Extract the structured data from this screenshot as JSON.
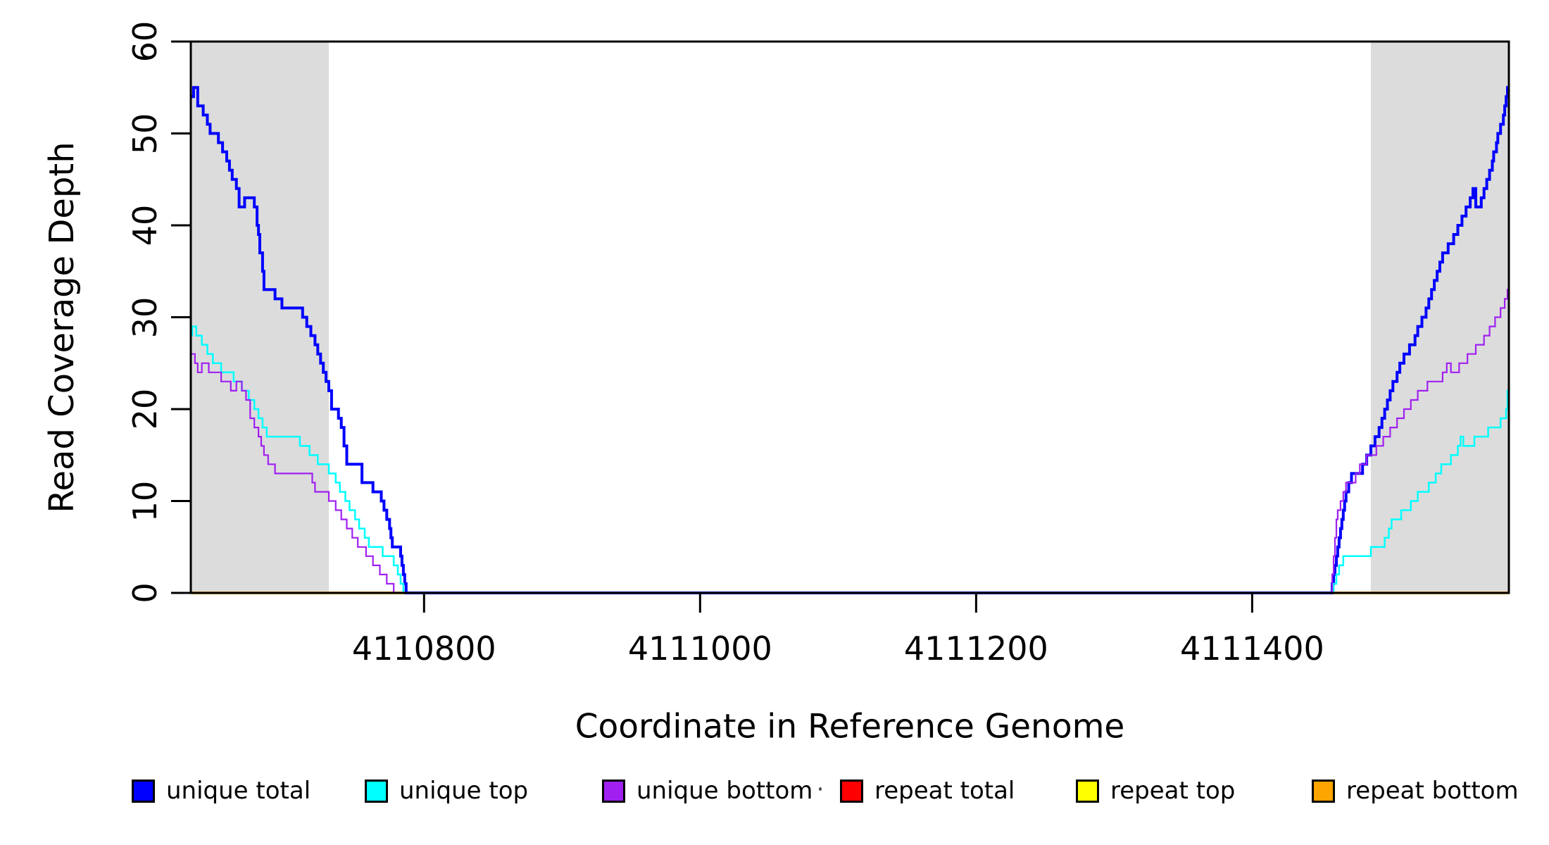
{
  "chart_data": {
    "type": "line",
    "title": "",
    "xlabel": "Coordinate in Reference Genome",
    "ylabel": "Read Coverage Depth",
    "xlim": [
      4110631,
      4111586
    ],
    "ylim": [
      0,
      60
    ],
    "grid": false,
    "legend_position": "bottom",
    "xticks": [
      4110800,
      4111000,
      4111200,
      4111400
    ],
    "xtick_labels": [
      "4110800",
      "4111000",
      "4111200",
      "4111400"
    ],
    "yticks": [
      0,
      10,
      20,
      30,
      40,
      50,
      60
    ],
    "ytick_labels": [
      "0",
      "10",
      "20",
      "30",
      "40",
      "50",
      "60"
    ],
    "shaded_regions": [
      {
        "x0": 4110631,
        "x1": 4110731,
        "color": "#DCDCDC"
      },
      {
        "x0": 4111486,
        "x1": 4111586,
        "color": "#DCDCDC"
      }
    ],
    "series": [
      {
        "name": "repeat total",
        "color": "#FF0000",
        "width": 3.5,
        "steps": [
          [
            4110631,
            0
          ],
          [
            4111586,
            0
          ]
        ]
      },
      {
        "name": "repeat top",
        "color": "#FFFF00",
        "width": 3.5,
        "steps": [
          [
            4110631,
            0
          ],
          [
            4111586,
            0
          ]
        ]
      },
      {
        "name": "repeat bottom",
        "color": "#FFA500",
        "width": 3.5,
        "steps": [
          [
            4110631,
            0
          ],
          [
            4111586,
            0
          ]
        ]
      },
      {
        "name": "unique total",
        "color": "#0000FF",
        "width": 4,
        "steps": [
          [
            4110631,
            54
          ],
          [
            4110633,
            55
          ],
          [
            4110636,
            53
          ],
          [
            4110640,
            52
          ],
          [
            4110643,
            51
          ],
          [
            4110645,
            50
          ],
          [
            4110651,
            49
          ],
          [
            4110654,
            48
          ],
          [
            4110657,
            47
          ],
          [
            4110659,
            46
          ],
          [
            4110661,
            45
          ],
          [
            4110664,
            44
          ],
          [
            4110666,
            42
          ],
          [
            4110670,
            43
          ],
          [
            4110677,
            42
          ],
          [
            4110679,
            40
          ],
          [
            4110680,
            39
          ],
          [
            4110681,
            37
          ],
          [
            4110683,
            35
          ],
          [
            4110684,
            33
          ],
          [
            4110692,
            32
          ],
          [
            4110697,
            31
          ],
          [
            4110712,
            30
          ],
          [
            4110715,
            29
          ],
          [
            4110718,
            28
          ],
          [
            4110721,
            27
          ],
          [
            4110723,
            26
          ],
          [
            4110725,
            25
          ],
          [
            4110727,
            24
          ],
          [
            4110729,
            23
          ],
          [
            4110731,
            22
          ],
          [
            4110733,
            20
          ],
          [
            4110738,
            19
          ],
          [
            4110740,
            18
          ],
          [
            4110742,
            16
          ],
          [
            4110744,
            14
          ],
          [
            4110755,
            12
          ],
          [
            4110763,
            11
          ],
          [
            4110769,
            10
          ],
          [
            4110771,
            9
          ],
          [
            4110773,
            8
          ],
          [
            4110775,
            7
          ],
          [
            4110776,
            6
          ],
          [
            4110777,
            5
          ],
          [
            4110783,
            4
          ],
          [
            4110784,
            3
          ],
          [
            4110785,
            2
          ],
          [
            4110786,
            1
          ],
          [
            4110787,
            0
          ],
          [
            4111458,
            1
          ],
          [
            4111459,
            2
          ],
          [
            4111460,
            3
          ],
          [
            4111461,
            4
          ],
          [
            4111462,
            5
          ],
          [
            4111463,
            6
          ],
          [
            4111464,
            7
          ],
          [
            4111465,
            8
          ],
          [
            4111466,
            9
          ],
          [
            4111467,
            10
          ],
          [
            4111468,
            11
          ],
          [
            4111470,
            12
          ],
          [
            4111472,
            13
          ],
          [
            4111480,
            14
          ],
          [
            4111483,
            15
          ],
          [
            4111486,
            16
          ],
          [
            4111489,
            17
          ],
          [
            4111492,
            18
          ],
          [
            4111494,
            19
          ],
          [
            4111496,
            20
          ],
          [
            4111498,
            21
          ],
          [
            4111500,
            22
          ],
          [
            4111502,
            23
          ],
          [
            4111505,
            24
          ],
          [
            4111507,
            25
          ],
          [
            4111510,
            26
          ],
          [
            4111514,
            27
          ],
          [
            4111518,
            28
          ],
          [
            4111520,
            29
          ],
          [
            4111523,
            30
          ],
          [
            4111526,
            31
          ],
          [
            4111528,
            32
          ],
          [
            4111530,
            33
          ],
          [
            4111532,
            34
          ],
          [
            4111534,
            35
          ],
          [
            4111536,
            36
          ],
          [
            4111538,
            37
          ],
          [
            4111542,
            38
          ],
          [
            4111546,
            39
          ],
          [
            4111549,
            40
          ],
          [
            4111552,
            41
          ],
          [
            4111555,
            42
          ],
          [
            4111558,
            43
          ],
          [
            4111560,
            44
          ],
          [
            4111562,
            42
          ],
          [
            4111566,
            43
          ],
          [
            4111568,
            44
          ],
          [
            4111570,
            45
          ],
          [
            4111572,
            46
          ],
          [
            4111574,
            47
          ],
          [
            4111575,
            48
          ],
          [
            4111577,
            49
          ],
          [
            4111578,
            50
          ],
          [
            4111580,
            51
          ],
          [
            4111582,
            52
          ],
          [
            4111583,
            53
          ],
          [
            4111584,
            54
          ],
          [
            4111585,
            55
          ],
          [
            4111586,
            55
          ]
        ]
      },
      {
        "name": "unique top",
        "color": "#00FFFF",
        "width": 2.5,
        "steps": [
          [
            4110631,
            28
          ],
          [
            4110632,
            29
          ],
          [
            4110635,
            28
          ],
          [
            4110639,
            27
          ],
          [
            4110643,
            26
          ],
          [
            4110647,
            25
          ],
          [
            4110653,
            24
          ],
          [
            4110662,
            23
          ],
          [
            4110668,
            22
          ],
          [
            4110673,
            21
          ],
          [
            4110677,
            20
          ],
          [
            4110680,
            19
          ],
          [
            4110683,
            18
          ],
          [
            4110686,
            17
          ],
          [
            4110710,
            16
          ],
          [
            4110717,
            15
          ],
          [
            4110723,
            14
          ],
          [
            4110731,
            13
          ],
          [
            4110736,
            12
          ],
          [
            4110739,
            11
          ],
          [
            4110743,
            10
          ],
          [
            4110746,
            9
          ],
          [
            4110750,
            8
          ],
          [
            4110753,
            7
          ],
          [
            4110757,
            6
          ],
          [
            4110760,
            5
          ],
          [
            4110770,
            4
          ],
          [
            4110778,
            3
          ],
          [
            4110781,
            2
          ],
          [
            4110783,
            1
          ],
          [
            4110785,
            0
          ],
          [
            4111459,
            1
          ],
          [
            4111461,
            2
          ],
          [
            4111463,
            3
          ],
          [
            4111466,
            4
          ],
          [
            4111486,
            5
          ],
          [
            4111496,
            6
          ],
          [
            4111499,
            7
          ],
          [
            4111501,
            8
          ],
          [
            4111508,
            9
          ],
          [
            4111515,
            10
          ],
          [
            4111520,
            11
          ],
          [
            4111528,
            12
          ],
          [
            4111533,
            13
          ],
          [
            4111537,
            14
          ],
          [
            4111544,
            15
          ],
          [
            4111549,
            16
          ],
          [
            4111551,
            17
          ],
          [
            4111553,
            16
          ],
          [
            4111561,
            17
          ],
          [
            4111571,
            18
          ],
          [
            4111580,
            19
          ],
          [
            4111584,
            20
          ],
          [
            4111585,
            22
          ],
          [
            4111586,
            22
          ]
        ]
      },
      {
        "name": "unique bottom",
        "color": "#A020F0",
        "width": 2.2,
        "steps": [
          [
            4110631,
            26
          ],
          [
            4110634,
            25
          ],
          [
            4110636,
            24
          ],
          [
            4110639,
            25
          ],
          [
            4110644,
            24
          ],
          [
            4110653,
            23
          ],
          [
            4110660,
            22
          ],
          [
            4110664,
            23
          ],
          [
            4110668,
            22
          ],
          [
            4110671,
            21
          ],
          [
            4110674,
            19
          ],
          [
            4110677,
            18
          ],
          [
            4110680,
            17
          ],
          [
            4110682,
            16
          ],
          [
            4110684,
            15
          ],
          [
            4110687,
            14
          ],
          [
            4110692,
            13
          ],
          [
            4110719,
            12
          ],
          [
            4110721,
            11
          ],
          [
            4110731,
            10
          ],
          [
            4110736,
            9
          ],
          [
            4110740,
            8
          ],
          [
            4110744,
            7
          ],
          [
            4110748,
            6
          ],
          [
            4110752,
            5
          ],
          [
            4110758,
            4
          ],
          [
            4110763,
            3
          ],
          [
            4110768,
            2
          ],
          [
            4110773,
            1
          ],
          [
            4110778,
            0
          ],
          [
            4111458,
            2
          ],
          [
            4111459,
            4
          ],
          [
            4111460,
            6
          ],
          [
            4111461,
            8
          ],
          [
            4111462,
            9
          ],
          [
            4111464,
            10
          ],
          [
            4111466,
            11
          ],
          [
            4111468,
            12
          ],
          [
            4111475,
            13
          ],
          [
            4111478,
            14
          ],
          [
            4111483,
            15
          ],
          [
            4111490,
            16
          ],
          [
            4111495,
            17
          ],
          [
            4111500,
            18
          ],
          [
            4111505,
            19
          ],
          [
            4111510,
            20
          ],
          [
            4111515,
            21
          ],
          [
            4111520,
            22
          ],
          [
            4111527,
            23
          ],
          [
            4111538,
            24
          ],
          [
            4111541,
            25
          ],
          [
            4111544,
            24
          ],
          [
            4111550,
            25
          ],
          [
            4111556,
            26
          ],
          [
            4111562,
            27
          ],
          [
            4111568,
            28
          ],
          [
            4111572,
            29
          ],
          [
            4111576,
            30
          ],
          [
            4111580,
            31
          ],
          [
            4111583,
            32
          ],
          [
            4111585,
            33
          ],
          [
            4111586,
            33
          ]
        ]
      }
    ]
  },
  "legend": {
    "items": [
      {
        "label": "unique total",
        "color": "#0000FF"
      },
      {
        "label": "unique top",
        "color": "#00FFFF"
      },
      {
        "label": "unique bottom",
        "color": "#A020F0"
      },
      {
        "label": "repeat total",
        "color": "#FF0000"
      },
      {
        "label": "repeat top",
        "color": "#FFFF00"
      },
      {
        "label": "repeat bottom",
        "color": "#FFA500"
      }
    ]
  }
}
